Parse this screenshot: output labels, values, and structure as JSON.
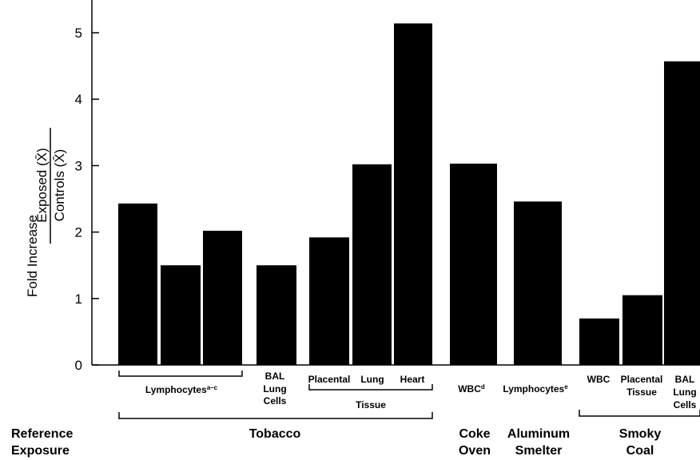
{
  "chart_data": {
    "type": "bar",
    "ylabel_prefix": "Fold Increase",
    "ylabel_numerator": "Exposed (X̄)",
    "ylabel_denominator": "Controls (X̄)",
    "ylim": [
      0,
      5.4
    ],
    "yticks": [
      0,
      1,
      2,
      3,
      4,
      5
    ],
    "bar_color": "#000000",
    "bars": [
      {
        "value": 2.43,
        "exposure": "Tobacco"
      },
      {
        "value": 1.5,
        "exposure": "Tobacco"
      },
      {
        "value": 2.02,
        "exposure": "Tobacco"
      },
      {
        "value": 1.5,
        "exposure": "Tobacco"
      },
      {
        "value": 1.92,
        "exposure": "Tobacco"
      },
      {
        "value": 3.02,
        "exposure": "Tobacco"
      },
      {
        "value": 5.14,
        "exposure": "Tobacco"
      },
      {
        "value": 3.03,
        "exposure": "Coke Oven"
      },
      {
        "value": 2.46,
        "exposure": "Aluminum Smelter"
      },
      {
        "value": 0.7,
        "exposure": "Smoky Coal"
      },
      {
        "value": 1.05,
        "exposure": "Smoky Coal"
      },
      {
        "value": 4.57,
        "exposure": "Smoky Coal"
      }
    ],
    "category_labels": [
      {
        "text": "Lymphocytes",
        "sup": "a–c"
      },
      {
        "text": "BAL",
        "sup": ""
      },
      {
        "text": "Lung",
        "sup": ""
      },
      {
        "text": "Cells",
        "sup": ""
      },
      {
        "text": "Placental",
        "sup": ""
      },
      {
        "text": "Lung",
        "sup": ""
      },
      {
        "text": "Heart",
        "sup": ""
      },
      {
        "text": "WBC",
        "sup": "d"
      },
      {
        "text": "Lymphocytes",
        "sup": "e"
      },
      {
        "text": "WBC",
        "sup": ""
      },
      {
        "text": "Placental",
        "sup": ""
      },
      {
        "text": "Tissue",
        "sup": ""
      },
      {
        "text": "BAL",
        "sup": ""
      },
      {
        "text": "Lung",
        "sup": ""
      },
      {
        "text": "Cells",
        "sup": ""
      }
    ],
    "group_labels": [
      "Tissue"
    ],
    "reference_label": [
      "Reference",
      "Exposure"
    ],
    "exposures": [
      {
        "lines": [
          "Tobacco"
        ]
      },
      {
        "lines": [
          "Coke",
          "Oven"
        ]
      },
      {
        "lines": [
          "Aluminum",
          "Smelter"
        ]
      },
      {
        "lines": [
          "Smoky",
          "Coal"
        ]
      }
    ]
  }
}
